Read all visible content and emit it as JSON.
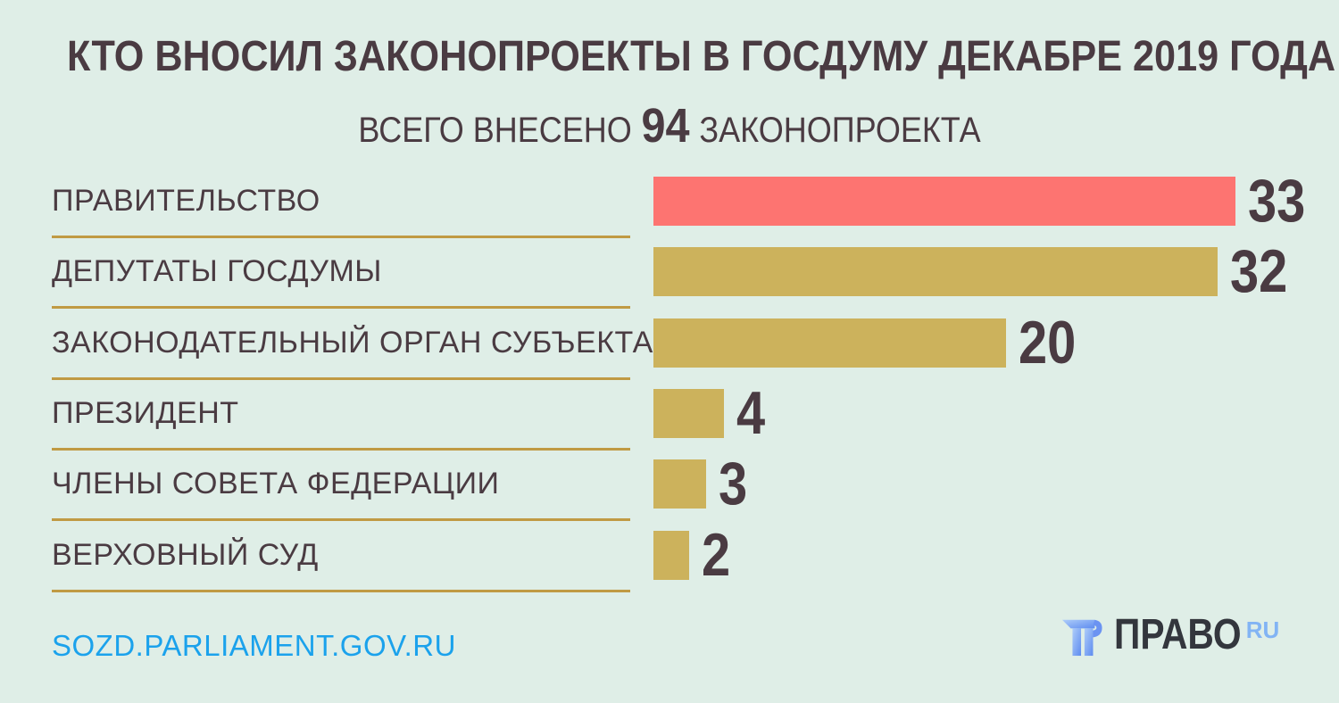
{
  "header": {
    "title": "КТО ВНОСИЛ ЗАКОНОПРОЕКТЫ В ГОСДУМУ ДЕКАБРЕ 2019 ГОДА",
    "subtitle_prefix": "ВСЕГО ВНЕСЕНО",
    "subtitle_total": "94",
    "subtitle_suffix": "ЗАКОНОПРОЕКТА"
  },
  "chart_data": {
    "type": "bar",
    "orientation": "horizontal",
    "title": "КТО ВНОСИЛ ЗАКОНОПРОЕКТЫ В ГОСДУМУ ДЕКАБРЕ 2019 ГОДА",
    "subtitle": "ВСЕГО ВНЕСЕНО 94 ЗАКОНОПРОЕКТА",
    "total": 94,
    "categories": [
      "ПРАВИТЕЛЬСТВО",
      "ДЕПУТАТЫ ГОСДУМЫ",
      "ЗАКОНОДАТЕЛЬНЫЙ ОРГАН СУБЪЕКТА",
      "ПРЕЗИДЕНТ",
      "ЧЛЕНЫ СОВЕТА ФЕДЕРАЦИИ",
      "ВЕРХОВНЫЙ СУД"
    ],
    "values": [
      33,
      32,
      20,
      4,
      3,
      2
    ],
    "bar_colors": [
      "#fd7471",
      "#ccb25c",
      "#ccb25c",
      "#ccb25c",
      "#ccb25c",
      "#ccb25c"
    ],
    "value_labels": [
      "33",
      "32",
      "20",
      "4",
      "3",
      "2"
    ],
    "xlim": [
      0,
      33
    ],
    "grid": false,
    "legend": false
  },
  "footer": {
    "source_link": "SOZD.PARLIAMENT.GOV.RU",
    "logo_text": "ПРАВО",
    "logo_suffix": "RU"
  },
  "colors": {
    "background": "#dfeee7",
    "text": "#4a3b42",
    "highlight_bar": "#fd7471",
    "default_bar": "#ccb25c",
    "divider": "#c09a44",
    "link": "#1ba2ec",
    "logo_dark": "#33363d",
    "logo_blue": "#82b4f4"
  }
}
